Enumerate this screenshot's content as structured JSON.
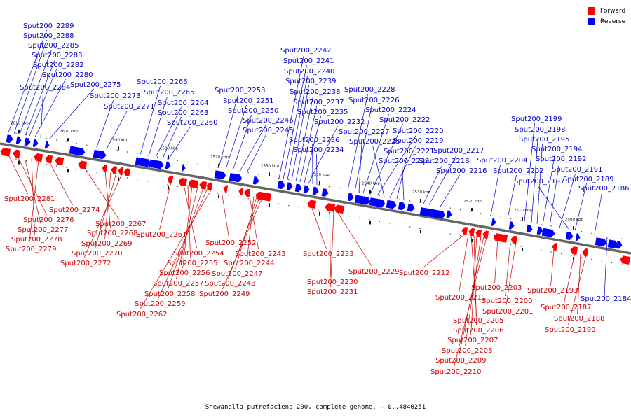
{
  "caption": "Shewanella putrefaciens 200, complete genome. - 0..4840251",
  "legend": [
    {
      "label": "Forward",
      "color": "#ff0000"
    },
    {
      "label": "Reverse",
      "color": "#0000ff"
    }
  ],
  "ticks": [
    "2610 kbp",
    "2600 kbp",
    "2590 kbp",
    "2580 kbp",
    "2570 kbp",
    "2560 kbp",
    "2550 kbp",
    "2540 kbp",
    "2530 kbp",
    "2520 kbp",
    "2510 kbp",
    "2500 kbp"
  ],
  "reverse_genes": [
    "Sput200_2289",
    "Sput200_2288",
    "Sput200_2285",
    "Sput200_2283",
    "Sput200_2282",
    "Sput200_2280",
    "Sput200_2284",
    "Sput200_2275",
    "Sput200_2273",
    "Sput200_2271",
    "Sput200_2266",
    "Sput200_2265",
    "Sput200_2264",
    "Sput200_2263",
    "Sput200_2260",
    "Sput200_2253",
    "Sput200_2251",
    "Sput200_2250",
    "Sput200_2246",
    "Sput200_2245",
    "Sput200_2242",
    "Sput200_2241",
    "Sput200_2240",
    "Sput200_2239",
    "Sput200_2238",
    "Sput200_2237",
    "Sput200_2235",
    "Sput200_2232",
    "Sput200_2236",
    "Sput200_2234",
    "Sput200_2228",
    "Sput200_2226",
    "Sput200_2224",
    "Sput200_2222",
    "Sput200_2227",
    "Sput200_2220",
    "Sput200_2225",
    "Sput200_2219",
    "Sput200_2221",
    "Sput200_2223",
    "Sput200_2218",
    "Sput200_2217",
    "Sput200_2216",
    "Sput200_2204",
    "Sput200_2202",
    "Sput200_2199",
    "Sput200_2198",
    "Sput200_2195",
    "Sput200_2194",
    "Sput200_2192",
    "Sput200_2191",
    "Sput200_2197",
    "Sput200_2189",
    "Sput200_2186",
    "Sput200_2184"
  ],
  "forward_genes": [
    "Sput200_2281",
    "Sput200_2276",
    "Sput200_2277",
    "Sput200_2278",
    "Sput200_2279",
    "Sput200_2274",
    "Sput200_2267",
    "Sput200_2268",
    "Sput200_2269",
    "Sput200_2270",
    "Sput200_2272",
    "Sput200_2261",
    "Sput200_2254",
    "Sput200_2255",
    "Sput200_2256",
    "Sput200_2257",
    "Sput200_2258",
    "Sput200_2259",
    "Sput200_2262",
    "Sput200_2252",
    "Sput200_2243",
    "Sput200_2244",
    "Sput200_2247",
    "Sput200_2248",
    "Sput200_2249",
    "Sput200_2233",
    "Sput200_2230",
    "Sput200_2231",
    "Sput200_2229",
    "Sput200_2212",
    "Sput200_2211",
    "Sput200_2205",
    "Sput200_2206",
    "Sput200_2207",
    "Sput200_2208",
    "Sput200_2209",
    "Sput200_2210",
    "Sput200_2203",
    "Sput200_2200",
    "Sput200_2201",
    "Sput200_2193",
    "Sput200_2187",
    "Sput200_2188",
    "Sput200_2190"
  ]
}
